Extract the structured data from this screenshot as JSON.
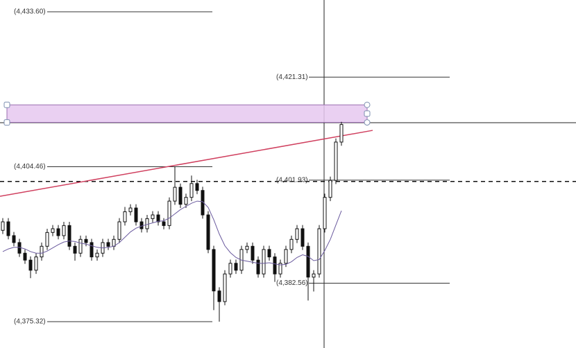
{
  "chart_data": {
    "type": "candlestick",
    "ylim": [
      4370.37,
      4435.82
    ],
    "open": [
      4392.5,
      4394.1,
      4391.5,
      4390.2,
      4388.2,
      4386.9,
      4385.0,
      4387.5,
      4389.5,
      4392.1,
      4392.8,
      4391.5,
      4393.4,
      4389.5,
      4388.2,
      4390.8,
      4390.2,
      4387.5,
      4388.2,
      4390.2,
      4389.5,
      4390.8,
      4394.1,
      4396.0,
      4396.7,
      4394.1,
      4392.8,
      4394.7,
      4395.4,
      4394.1,
      4393.4,
      4398.0,
      4400.6,
      4397.4,
      4398.7,
      4401.3,
      4400.0,
      4395.4,
      4388.9,
      4381.1,
      4379.1,
      4384.3,
      4386.3,
      4385.0,
      4388.9,
      4389.5,
      4386.9,
      4384.3,
      4388.9,
      4387.5,
      4384.3,
      4386.3,
      4388.9,
      4390.8,
      4392.8,
      4389.5,
      4383.7,
      4384.3,
      4392.8,
      4398.7,
      4401.9,
      4409.1
    ],
    "high": [
      4394.8,
      4394.8,
      4392.2,
      4390.9,
      4388.9,
      4387.6,
      4388.2,
      4390.2,
      4392.8,
      4393.5,
      4393.5,
      4394.1,
      4394.1,
      4390.2,
      4391.5,
      4391.5,
      4390.9,
      4388.9,
      4390.9,
      4390.9,
      4391.5,
      4394.8,
      4396.9,
      4397.4,
      4397.4,
      4394.8,
      4395.4,
      4396.1,
      4396.1,
      4394.8,
      4398.7,
      4404.46,
      4401.3,
      4399.4,
      4402.8,
      4402.0,
      4400.7,
      4396.1,
      4389.6,
      4381.8,
      4385.0,
      4387.0,
      4387.0,
      4389.6,
      4390.2,
      4390.2,
      4387.6,
      4389.6,
      4389.6,
      4388.2,
      4387.0,
      4389.6,
      4391.5,
      4393.5,
      4393.5,
      4390.2,
      4385.0,
      4393.5,
      4399.4,
      4402.6,
      4409.8,
      4412.9
    ],
    "low": [
      4391.8,
      4390.8,
      4389.5,
      4387.5,
      4386.2,
      4383.5,
      4384.3,
      4386.8,
      4388.8,
      4391.4,
      4390.8,
      4390.8,
      4388.8,
      4386.8,
      4387.5,
      4389.5,
      4386.8,
      4386.8,
      4387.5,
      4388.8,
      4388.8,
      4390.1,
      4393.4,
      4395.3,
      4393.4,
      4392.1,
      4392.1,
      4394.0,
      4393.4,
      4392.7,
      4392.7,
      4397.3,
      4396.7,
      4396.7,
      4398.0,
      4399.3,
      4394.7,
      4388.2,
      4377.5,
      4375.32,
      4378.4,
      4383.6,
      4384.3,
      4384.3,
      4388.2,
      4386.2,
      4383.6,
      4383.6,
      4386.8,
      4382.8,
      4383.6,
      4385.6,
      4388.2,
      4390.1,
      4388.8,
      4379.3,
      4381.0,
      4383.6,
      4392.1,
      4398.0,
      4401.2,
      4408.4
    ],
    "close": [
      4394.1,
      4391.5,
      4390.2,
      4388.2,
      4386.9,
      4385.0,
      4387.5,
      4389.5,
      4392.1,
      4392.8,
      4391.5,
      4393.4,
      4389.5,
      4388.2,
      4390.8,
      4390.2,
      4387.5,
      4388.2,
      4390.2,
      4389.5,
      4390.8,
      4394.1,
      4396.0,
      4396.7,
      4394.1,
      4392.8,
      4394.7,
      4395.4,
      4394.1,
      4393.4,
      4398.0,
      4400.6,
      4397.4,
      4398.7,
      4401.3,
      4400.0,
      4395.4,
      4388.9,
      4381.1,
      4379.1,
      4384.3,
      4386.3,
      4385.0,
      4388.9,
      4389.5,
      4386.9,
      4384.3,
      4388.9,
      4387.5,
      4384.3,
      4386.3,
      4388.9,
      4390.8,
      4392.8,
      4389.5,
      4383.7,
      4384.3,
      4392.8,
      4398.7,
      4401.9,
      4409.1,
      4412.4
    ],
    "moving_average": {
      "color": "#6a5a9e",
      "values": [
        4388.5,
        4389.0,
        4389.3,
        4389.3,
        4389.0,
        4388.5,
        4388.2,
        4388.2,
        4388.6,
        4389.2,
        4389.8,
        4390.3,
        4390.5,
        4390.4,
        4390.1,
        4389.9,
        4389.6,
        4389.3,
        4389.2,
        4389.3,
        4389.5,
        4390.2,
        4391.2,
        4392.2,
        4392.9,
        4393.3,
        4393.6,
        4393.9,
        4394.2,
        4394.3,
        4394.8,
        4395.6,
        4396.4,
        4397.0,
        4397.6,
        4398.0,
        4397.9,
        4396.8,
        4394.5,
        4391.8,
        4389.6,
        4388.3,
        4387.4,
        4386.9,
        4386.7,
        4386.5,
        4386.3,
        4386.3,
        4386.4,
        4386.2,
        4386.0,
        4386.1,
        4386.6,
        4387.4,
        4387.9,
        4387.6,
        4386.8,
        4387.0,
        4388.7,
        4390.8,
        4393.5,
        4396.2
      ]
    },
    "trendline": {
      "color": "#d0405f",
      "values": [
        4398.9,
        4411.3
      ]
    },
    "zone": {
      "color": "#e6c8f0",
      "values": [
        4412.8,
        4416.1
      ]
    },
    "dashed_level": 4401.7,
    "annotations": [
      {
        "value": 4433.6,
        "label": "(4,433.60)"
      },
      {
        "value": 4421.31,
        "label": "(4,421.31)"
      },
      {
        "value": 4404.46,
        "label": "(4,404.46)"
      },
      {
        "value": 4401.93,
        "label": "(4,401.93)"
      },
      {
        "value": 4382.56,
        "label": "(4,382.56)"
      },
      {
        "value": 4375.32,
        "label": "(4,375.32)"
      }
    ]
  }
}
